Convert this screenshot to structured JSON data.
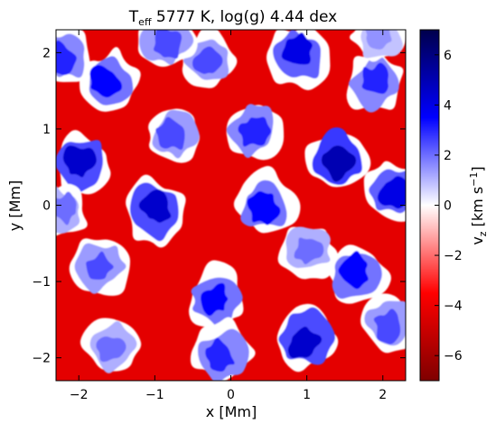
{
  "chart_data": {
    "type": "heatmap",
    "title": {
      "prefix": "T",
      "subscript": "eff",
      "suffix": " 5777 K, log(g) 4.44 dex"
    },
    "xlabel": "x [Mm]",
    "ylabel": "y [Mm]",
    "xlim": [
      -2.3,
      2.3
    ],
    "ylim": [
      -2.3,
      2.3
    ],
    "xticks": [
      -2,
      -1,
      0,
      1,
      2
    ],
    "yticks": [
      -2,
      -1,
      0,
      1,
      2
    ],
    "xtick_labels": [
      "−2",
      "−1",
      "0",
      "1",
      "2"
    ],
    "ytick_labels": [
      "−2",
      "−1",
      "0",
      "1",
      "2"
    ],
    "colorbar": {
      "label_main": "v",
      "label_sub": "z",
      "label_units": " [km s",
      "label_exp": "−1",
      "label_close": "]",
      "vmin": -7,
      "vmax": 7,
      "ticks": [
        -6,
        -4,
        -2,
        0,
        2,
        4,
        6
      ],
      "tick_labels": [
        "−6",
        "−4",
        "−2",
        "0",
        "2",
        "4",
        "6"
      ],
      "colormap": "seismic_r"
    },
    "colors": {
      "negative_end": "#7f0000",
      "negative": "#ff0000",
      "zero": "#ffffff",
      "positive": "#0000ff",
      "positive_end": "#00004c"
    },
    "granules": [
      {
        "x": -1.6,
        "y": 1.6,
        "v": 3.5
      },
      {
        "x": -0.3,
        "y": 1.9,
        "v": 2.5
      },
      {
        "x": 0.9,
        "y": 1.95,
        "v": 4.0
      },
      {
        "x": 1.9,
        "y": 1.6,
        "v": 3.0
      },
      {
        "x": -1.95,
        "y": 0.55,
        "v": 4.5
      },
      {
        "x": -0.75,
        "y": 0.9,
        "v": 2.5
      },
      {
        "x": 0.3,
        "y": 1.0,
        "v": 3.0
      },
      {
        "x": 1.4,
        "y": 0.6,
        "v": 5.0
      },
      {
        "x": 2.15,
        "y": 0.2,
        "v": 4.0
      },
      {
        "x": -1.0,
        "y": -0.1,
        "v": 4.5
      },
      {
        "x": 0.45,
        "y": 0.0,
        "v": 3.5
      },
      {
        "x": 1.0,
        "y": -0.6,
        "v": 2.0
      },
      {
        "x": -1.7,
        "y": -0.8,
        "v": 2.5
      },
      {
        "x": -0.2,
        "y": -1.25,
        "v": 3.5
      },
      {
        "x": 1.65,
        "y": -0.9,
        "v": 3.5
      },
      {
        "x": -1.55,
        "y": -1.85,
        "v": 2.0
      },
      {
        "x": -0.1,
        "y": -1.95,
        "v": 3.0
      },
      {
        "x": 1.0,
        "y": -1.75,
        "v": 4.5
      },
      {
        "x": 2.1,
        "y": -1.55,
        "v": 2.5
      },
      {
        "x": -2.2,
        "y": 1.95,
        "v": 3.0
      },
      {
        "x": -2.25,
        "y": -0.1,
        "v": 2.0
      },
      {
        "x": -0.85,
        "y": 2.15,
        "v": 2.5
      },
      {
        "x": 1.95,
        "y": 2.2,
        "v": 1.5
      }
    ]
  }
}
